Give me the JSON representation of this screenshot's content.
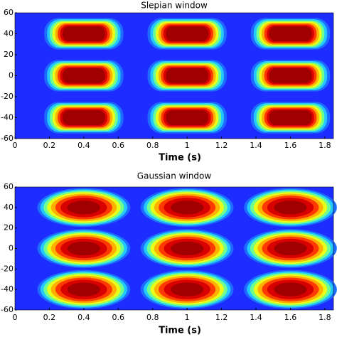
{
  "chart_data": [
    {
      "type": "heatmap",
      "title": "Slepian window",
      "xlabel": "Time (s)",
      "xlim": [
        0,
        1.85
      ],
      "ylim": [
        -60,
        60
      ],
      "xticks": [
        0,
        0.2,
        0.4,
        0.6,
        0.8,
        1,
        1.2,
        1.4,
        1.6,
        1.8
      ],
      "yticks": [
        -60,
        -40,
        -20,
        0,
        20,
        40,
        60
      ],
      "kernel": "rect",
      "background": "#1d2cff",
      "colormap": [
        "#1d6bff",
        "#22c8ff",
        "#6fff8f",
        "#e8ff1a",
        "#ffb000",
        "#ff3a00",
        "#d80000",
        "#a00000"
      ],
      "blobs": {
        "x": [
          0.4,
          1,
          1.6,
          0.4,
          1,
          1.6,
          0.4,
          1,
          1.6
        ],
        "y": [
          40,
          40,
          40,
          0,
          0,
          0,
          -40,
          -40,
          -40
        ]
      }
    },
    {
      "type": "heatmap",
      "title": "Gaussian window",
      "xlabel": "Time (s)",
      "xlim": [
        0,
        1.85
      ],
      "ylim": [
        -60,
        60
      ],
      "xticks": [
        0,
        0.2,
        0.4,
        0.6,
        0.8,
        1,
        1.2,
        1.4,
        1.6,
        1.8
      ],
      "yticks": [
        -60,
        -40,
        -20,
        0,
        20,
        40,
        60
      ],
      "kernel": "ellipse",
      "background": "#1d2cff",
      "colormap": [
        "#1d6bff",
        "#22c8ff",
        "#6fff8f",
        "#e8ff1a",
        "#ffb000",
        "#ff3a00",
        "#d80000",
        "#a00000"
      ],
      "blobs": {
        "x": [
          0.4,
          1,
          1.6,
          0.4,
          1,
          1.6,
          0.4,
          1,
          1.6
        ],
        "y": [
          40,
          40,
          40,
          0,
          0,
          0,
          -40,
          -40,
          -40
        ]
      }
    }
  ]
}
